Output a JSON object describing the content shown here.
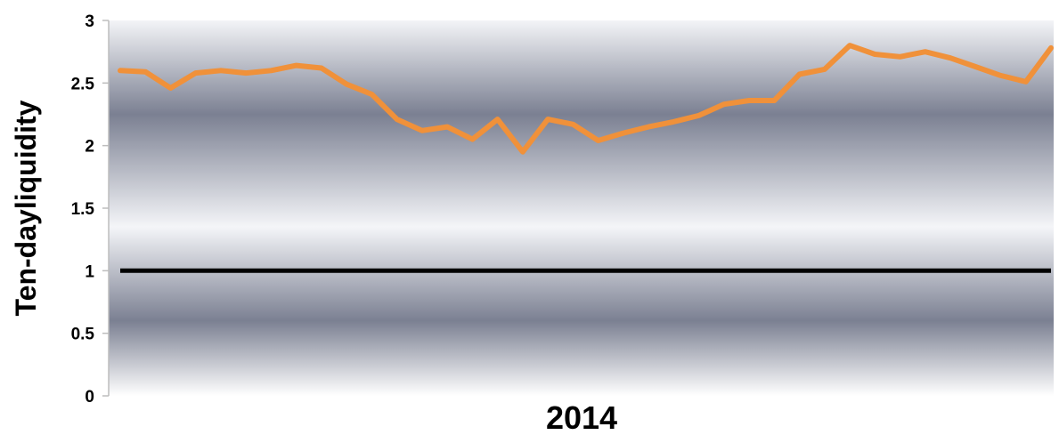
{
  "chart_data": {
    "type": "line",
    "title": "",
    "xlabel": "2014",
    "ylabel": "Ten-dayliquidity",
    "ylim": [
      0,
      3
    ],
    "yticks": [
      0,
      0.5,
      1,
      1.5,
      2,
      2.5,
      3
    ],
    "ytick_labels": [
      "0",
      "0.5",
      "1",
      "1.5",
      "2",
      "2.5",
      "3"
    ],
    "grid": false,
    "legend": "none",
    "series": [
      {
        "color": "#F0913A",
        "values": [
          2.6,
          2.59,
          2.46,
          2.58,
          2.6,
          2.58,
          2.6,
          2.64,
          2.62,
          2.49,
          2.41,
          2.21,
          2.12,
          2.15,
          2.05,
          2.21,
          1.95,
          2.21,
          2.17,
          2.04,
          2.1,
          2.15,
          2.19,
          2.24,
          2.33,
          2.36,
          2.36,
          2.57,
          2.61,
          2.8,
          2.73,
          2.71,
          2.75,
          2.7,
          2.63,
          2.56,
          2.51,
          2.78
        ]
      },
      {
        "color": "#000000",
        "values": [
          1,
          1
        ]
      }
    ]
  }
}
